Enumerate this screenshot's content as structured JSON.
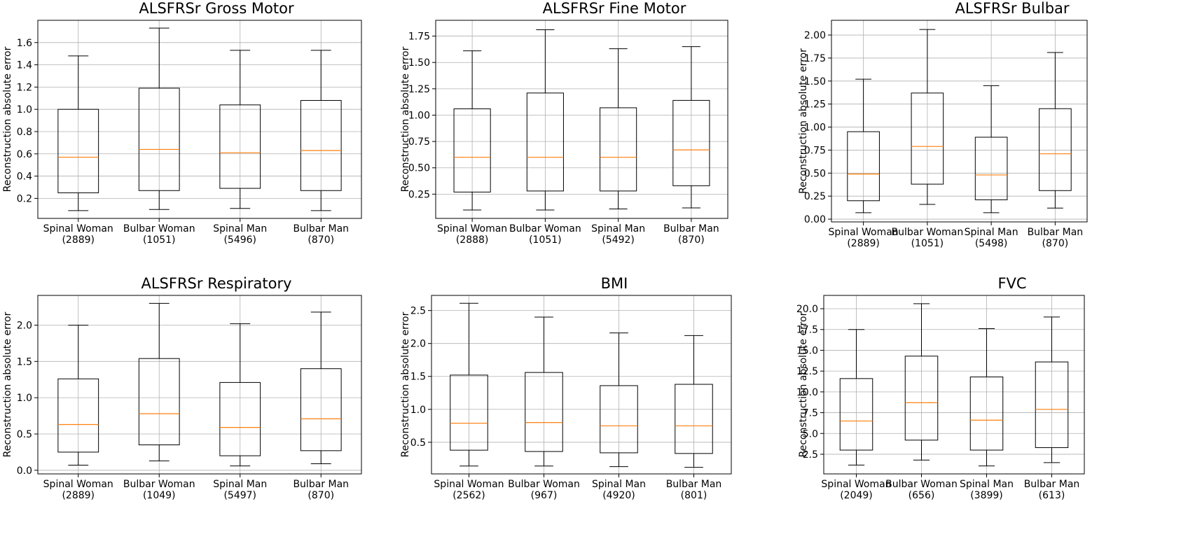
{
  "chart_data": [
    {
      "type": "box",
      "title": "ALSFRSr Gross Motor",
      "ylabel": "Reconstruction absolute error",
      "categories": [
        "Spinal Woman",
        "Bulbar Woman",
        "Spinal Man",
        "Bulbar Man"
      ],
      "counts": [
        "(2889)",
        "(1051)",
        "(5496)",
        "(870)"
      ],
      "boxes": [
        {
          "whislo": 0.09,
          "q1": 0.25,
          "med": 0.57,
          "q3": 1.0,
          "whishi": 1.48
        },
        {
          "whislo": 0.1,
          "q1": 0.27,
          "med": 0.64,
          "q3": 1.19,
          "whishi": 1.73
        },
        {
          "whislo": 0.11,
          "q1": 0.29,
          "med": 0.61,
          "q3": 1.04,
          "whishi": 1.53
        },
        {
          "whislo": 0.09,
          "q1": 0.27,
          "med": 0.63,
          "q3": 1.08,
          "whishi": 1.53
        }
      ],
      "ylim": [
        0.02,
        1.8
      ],
      "yticks": [
        0.2,
        0.4,
        0.6,
        0.8,
        1.0,
        1.2,
        1.4,
        1.6
      ],
      "ytick_labels": [
        "0.2",
        "0.4",
        "0.6",
        "0.8",
        "1.0",
        "1.2",
        "1.4",
        "1.6"
      ],
      "grid": true,
      "box_color": "#000000",
      "median_color": "#ff7f0e"
    },
    {
      "type": "box",
      "title": "ALSFRSr Fine Motor",
      "ylabel": "Reconstruction absolute error",
      "categories": [
        "Spinal Woman",
        "Bulbar Woman",
        "Spinal Man",
        "Bulbar Man"
      ],
      "counts": [
        "(2888)",
        "(1051)",
        "(5492)",
        "(870)"
      ],
      "boxes": [
        {
          "whislo": 0.1,
          "q1": 0.27,
          "med": 0.6,
          "q3": 1.06,
          "whishi": 1.61
        },
        {
          "whislo": 0.1,
          "q1": 0.28,
          "med": 0.6,
          "q3": 1.21,
          "whishi": 1.81
        },
        {
          "whislo": 0.11,
          "q1": 0.28,
          "med": 0.6,
          "q3": 1.07,
          "whishi": 1.63
        },
        {
          "whislo": 0.12,
          "q1": 0.33,
          "med": 0.67,
          "q3": 1.14,
          "whishi": 1.65
        }
      ],
      "ylim": [
        0.02,
        1.9
      ],
      "yticks": [
        0.25,
        0.5,
        0.75,
        1.0,
        1.25,
        1.5,
        1.75
      ],
      "ytick_labels": [
        "0.25",
        "0.50",
        "0.75",
        "1.00",
        "1.25",
        "1.50",
        "1.75"
      ],
      "grid": true,
      "box_color": "#000000",
      "median_color": "#ff7f0e"
    },
    {
      "type": "box",
      "title": "ALSFRSr Bulbar",
      "ylabel": "Reconstruction absolute error",
      "categories": [
        "Spinal Woman",
        "Bulbar Woman",
        "Spinal Man",
        "Bulbar Man"
      ],
      "counts": [
        "(2889)",
        "(1051)",
        "(5498)",
        "(870)"
      ],
      "boxes": [
        {
          "whislo": 0.07,
          "q1": 0.2,
          "med": 0.49,
          "q3": 0.95,
          "whishi": 1.52
        },
        {
          "whislo": 0.16,
          "q1": 0.38,
          "med": 0.79,
          "q3": 1.37,
          "whishi": 2.06
        },
        {
          "whislo": 0.07,
          "q1": 0.21,
          "med": 0.48,
          "q3": 0.89,
          "whishi": 1.45
        },
        {
          "whislo": 0.12,
          "q1": 0.31,
          "med": 0.71,
          "q3": 1.2,
          "whishi": 1.81
        }
      ],
      "ylim": [
        -0.03,
        2.16
      ],
      "yticks": [
        0.0,
        0.25,
        0.5,
        0.75,
        1.0,
        1.25,
        1.5,
        1.75,
        2.0
      ],
      "ytick_labels": [
        "0.00",
        "0.25",
        "0.50",
        "0.75",
        "1.00",
        "1.25",
        "1.50",
        "1.75",
        "2.00"
      ],
      "grid": true,
      "box_color": "#000000",
      "median_color": "#ff7f0e"
    },
    {
      "type": "box",
      "title": "ALSFRSr Respiratory",
      "ylabel": "Reconstruction absolute error",
      "categories": [
        "Spinal Woman",
        "Bulbar Woman",
        "Spinal Man",
        "Bulbar Man"
      ],
      "counts": [
        "(2889)",
        "(1049)",
        "(5497)",
        "(870)"
      ],
      "boxes": [
        {
          "whislo": 0.07,
          "q1": 0.25,
          "med": 0.63,
          "q3": 1.26,
          "whishi": 2.0
        },
        {
          "whislo": 0.13,
          "q1": 0.35,
          "med": 0.78,
          "q3": 1.54,
          "whishi": 2.3
        },
        {
          "whislo": 0.06,
          "q1": 0.2,
          "med": 0.59,
          "q3": 1.21,
          "whishi": 2.02
        },
        {
          "whislo": 0.09,
          "q1": 0.27,
          "med": 0.71,
          "q3": 1.4,
          "whishi": 2.18
        }
      ],
      "ylim": [
        -0.05,
        2.41
      ],
      "yticks": [
        0.0,
        0.5,
        1.0,
        1.5,
        2.0
      ],
      "ytick_labels": [
        "0.0",
        "0.5",
        "1.0",
        "1.5",
        "2.0"
      ],
      "grid": true,
      "box_color": "#000000",
      "median_color": "#ff7f0e"
    },
    {
      "type": "box",
      "title": "BMI",
      "ylabel": "Reconstruction absolute error",
      "categories": [
        "Spinal Woman",
        "Bulbar Woman",
        "Spinal Man",
        "Bulbar Man"
      ],
      "counts": [
        "(2562)",
        "(967)",
        "(4920)",
        "(801)"
      ],
      "boxes": [
        {
          "whislo": 0.14,
          "q1": 0.38,
          "med": 0.79,
          "q3": 1.52,
          "whishi": 2.61
        },
        {
          "whislo": 0.14,
          "q1": 0.36,
          "med": 0.8,
          "q3": 1.56,
          "whishi": 2.4
        },
        {
          "whislo": 0.13,
          "q1": 0.34,
          "med": 0.75,
          "q3": 1.36,
          "whishi": 2.16
        },
        {
          "whislo": 0.12,
          "q1": 0.33,
          "med": 0.75,
          "q3": 1.38,
          "whishi": 2.12
        }
      ],
      "ylim": [
        0.02,
        2.73
      ],
      "yticks": [
        0.5,
        1.0,
        1.5,
        2.0,
        2.5
      ],
      "ytick_labels": [
        "0.5",
        "1.0",
        "1.5",
        "2.0",
        "2.5"
      ],
      "grid": true,
      "box_color": "#000000",
      "median_color": "#ff7f0e"
    },
    {
      "type": "box",
      "title": "FVC",
      "ylabel": "Reconstruction absolute error",
      "categories": [
        "Spinal Woman",
        "Bulbar Woman",
        "Spinal Man",
        "Bulbar Man"
      ],
      "counts": [
        "(2049)",
        "(656)",
        "(3899)",
        "(613)"
      ],
      "boxes": [
        {
          "whislo": 1.2,
          "q1": 3.0,
          "med": 6.5,
          "q3": 11.6,
          "whishi": 17.5
        },
        {
          "whislo": 1.8,
          "q1": 4.2,
          "med": 8.7,
          "q3": 14.3,
          "whishi": 20.6
        },
        {
          "whislo": 1.1,
          "q1": 3.0,
          "med": 6.6,
          "q3": 11.8,
          "whishi": 17.6
        },
        {
          "whislo": 1.5,
          "q1": 3.3,
          "med": 7.9,
          "q3": 13.6,
          "whishi": 19.0
        }
      ],
      "ylim": [
        0.14,
        21.6
      ],
      "yticks": [
        2.5,
        5.0,
        7.5,
        10.0,
        12.5,
        15.0,
        17.5,
        20.0
      ],
      "ytick_labels": [
        "2.5",
        "5.0",
        "7.5",
        "10.0",
        "12.5",
        "15.0",
        "17.5",
        "20.0"
      ],
      "grid": true,
      "box_color": "#000000",
      "median_color": "#ff7f0e"
    }
  ]
}
